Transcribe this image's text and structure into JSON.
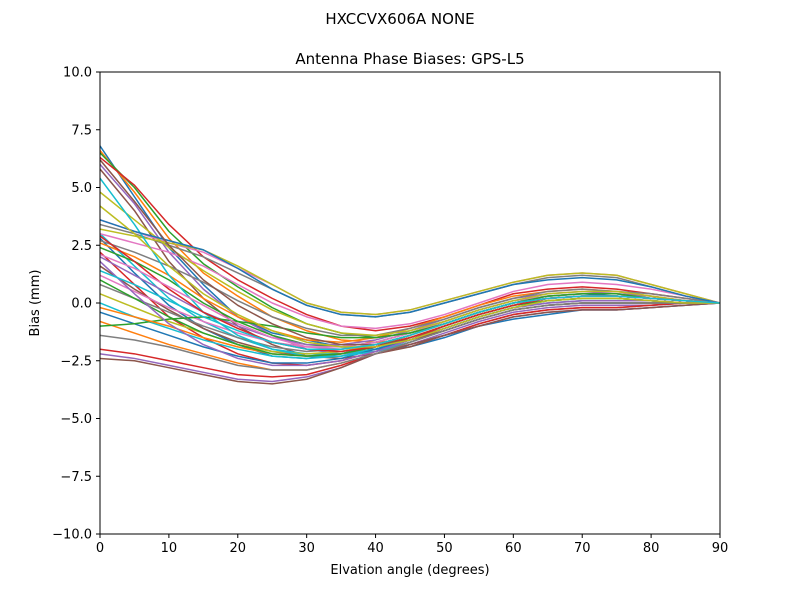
{
  "figure": {
    "suptitle": "HXCCVX606A       NONE"
  },
  "chart_data": {
    "type": "line",
    "title": "Antenna Phase Biases: GPS-L5",
    "xlabel": "Elvation angle (degrees)",
    "ylabel": "Bias (mm)",
    "xlim": [
      0,
      90
    ],
    "ylim": [
      -10,
      10
    ],
    "xticks": [
      0,
      10,
      20,
      30,
      40,
      50,
      60,
      70,
      80,
      90
    ],
    "yticks": [
      -10.0,
      -7.5,
      -5.0,
      -2.5,
      0.0,
      2.5,
      5.0,
      7.5,
      10.0
    ],
    "ytick_labels": [
      "−10.0",
      "−7.5",
      "−5.0",
      "−2.5",
      "0.0",
      "2.5",
      "5.0",
      "7.5",
      "10.0"
    ],
    "grid": false,
    "x": [
      0,
      5,
      10,
      15,
      20,
      25,
      30,
      35,
      40,
      45,
      50,
      55,
      60,
      65,
      70,
      75,
      80,
      85,
      90
    ],
    "series": [
      {
        "color": "#1f77b4",
        "values": [
          6.8,
          4.6,
          2.4,
          0.8,
          -0.6,
          -1.3,
          -1.6,
          -1.9,
          -2.0,
          -1.9,
          -1.5,
          -1.0,
          -0.7,
          -0.5,
          -0.3,
          -0.3,
          -0.2,
          -0.1,
          0.0
        ]
      },
      {
        "color": "#ff7f0e",
        "values": [
          6.6,
          4.8,
          2.8,
          1.3,
          0.3,
          -0.6,
          -1.2,
          -1.6,
          -1.7,
          -1.6,
          -1.2,
          -0.7,
          -0.3,
          -0.1,
          0.0,
          0.0,
          0.0,
          0.0,
          0.0
        ]
      },
      {
        "color": "#2ca02c",
        "values": [
          6.5,
          5.0,
          3.1,
          1.7,
          0.7,
          -0.2,
          -0.9,
          -1.3,
          -1.5,
          -1.3,
          -0.9,
          -0.4,
          0.0,
          0.2,
          0.3,
          0.3,
          0.2,
          0.1,
          0.0
        ]
      },
      {
        "color": "#d62728",
        "values": [
          6.3,
          5.1,
          3.4,
          2.0,
          1.0,
          0.2,
          -0.5,
          -1.0,
          -1.2,
          -1.0,
          -0.6,
          -0.1,
          0.4,
          0.6,
          0.7,
          0.6,
          0.4,
          0.2,
          0.0
        ]
      },
      {
        "color": "#9467bd",
        "values": [
          6.0,
          4.3,
          2.2,
          0.6,
          -0.6,
          -1.4,
          -2.0,
          -2.2,
          -2.1,
          -1.8,
          -1.3,
          -0.8,
          -0.4,
          -0.2,
          -0.1,
          -0.1,
          -0.1,
          0.0,
          0.0
        ]
      },
      {
        "color": "#8c564b",
        "values": [
          5.8,
          4.0,
          1.8,
          0.2,
          -1.0,
          -1.8,
          -2.3,
          -2.4,
          -2.2,
          -1.9,
          -1.4,
          -0.9,
          -0.5,
          -0.3,
          -0.2,
          -0.2,
          -0.1,
          0.0,
          0.0
        ]
      },
      {
        "color": "#e377c2",
        "values": [
          3.6,
          3.1,
          2.6,
          2.2,
          1.5,
          0.8,
          0.0,
          -0.4,
          -0.5,
          -0.3,
          0.1,
          0.5,
          0.9,
          1.2,
          1.3,
          1.2,
          0.8,
          0.4,
          0.0
        ]
      },
      {
        "color": "#7f7f7f",
        "values": [
          3.4,
          3.0,
          2.5,
          2.0,
          1.3,
          0.6,
          -0.1,
          -0.5,
          -0.6,
          -0.4,
          0.0,
          0.4,
          0.8,
          1.1,
          1.2,
          1.1,
          0.7,
          0.3,
          0.0
        ]
      },
      {
        "color": "#bcbd22",
        "values": [
          3.2,
          2.9,
          2.6,
          2.3,
          1.6,
          0.8,
          0.0,
          -0.4,
          -0.5,
          -0.3,
          0.1,
          0.5,
          0.9,
          1.2,
          1.3,
          1.2,
          0.8,
          0.4,
          0.0
        ]
      },
      {
        "color": "#17becf",
        "values": [
          3.0,
          1.6,
          0.2,
          -0.8,
          -1.5,
          -2.0,
          -2.2,
          -2.2,
          -2.0,
          -1.6,
          -1.1,
          -0.6,
          -0.2,
          0.1,
          0.2,
          0.2,
          0.1,
          0.0,
          0.0
        ]
      },
      {
        "color": "#1f77b4",
        "values": [
          2.8,
          1.3,
          -0.1,
          -1.1,
          -1.8,
          -2.3,
          -2.4,
          -2.2,
          -1.8,
          -1.4,
          -0.9,
          -0.4,
          0.0,
          0.3,
          0.4,
          0.3,
          0.2,
          0.1,
          0.0
        ]
      },
      {
        "color": "#ff7f0e",
        "values": [
          2.6,
          2.0,
          1.2,
          0.2,
          -0.6,
          -1.2,
          -1.6,
          -1.7,
          -1.5,
          -1.1,
          -0.6,
          -0.1,
          0.3,
          0.5,
          0.6,
          0.5,
          0.3,
          0.1,
          0.0
        ]
      },
      {
        "color": "#2ca02c",
        "values": [
          2.4,
          1.8,
          1.0,
          0.0,
          -0.8,
          -1.4,
          -1.8,
          -1.9,
          -1.7,
          -1.3,
          -0.8,
          -0.3,
          0.1,
          0.3,
          0.4,
          0.4,
          0.2,
          0.1,
          0.0
        ]
      },
      {
        "color": "#d62728",
        "values": [
          2.2,
          0.8,
          -0.6,
          -1.5,
          -2.2,
          -2.6,
          -2.7,
          -2.5,
          -2.1,
          -1.6,
          -1.0,
          -0.5,
          -0.1,
          0.2,
          0.3,
          0.3,
          0.2,
          0.1,
          0.0
        ]
      },
      {
        "color": "#9467bd",
        "values": [
          2.0,
          1.2,
          0.4,
          -0.4,
          -1.0,
          -1.5,
          -1.8,
          -1.8,
          -1.6,
          -1.2,
          -0.7,
          -0.2,
          0.2,
          0.4,
          0.5,
          0.4,
          0.3,
          0.1,
          0.0
        ]
      },
      {
        "color": "#8c564b",
        "values": [
          1.6,
          0.6,
          -0.3,
          -1.1,
          -1.7,
          -2.1,
          -2.3,
          -2.2,
          -1.9,
          -1.4,
          -0.9,
          -0.4,
          0.0,
          0.2,
          0.3,
          0.3,
          0.2,
          0.1,
          0.0
        ]
      },
      {
        "color": "#e377c2",
        "values": [
          1.2,
          0.5,
          -0.2,
          -0.8,
          -1.3,
          -1.7,
          -1.9,
          -1.9,
          -1.7,
          -1.3,
          -0.8,
          -0.3,
          0.1,
          0.3,
          0.4,
          0.4,
          0.2,
          0.1,
          0.0
        ]
      },
      {
        "color": "#7f7f7f",
        "values": [
          0.8,
          0.2,
          -0.4,
          -1.0,
          -1.5,
          -1.9,
          -2.1,
          -2.0,
          -1.8,
          -1.4,
          -0.9,
          -0.4,
          0.0,
          0.2,
          0.3,
          0.3,
          0.2,
          0.1,
          0.0
        ]
      },
      {
        "color": "#bcbd22",
        "values": [
          0.4,
          -0.2,
          -0.8,
          -1.3,
          -1.8,
          -2.1,
          -2.2,
          -2.1,
          -1.8,
          -1.4,
          -0.9,
          -0.4,
          0.0,
          0.2,
          0.3,
          0.3,
          0.2,
          0.1,
          0.0
        ]
      },
      {
        "color": "#17becf",
        "values": [
          0.0,
          -0.6,
          -1.1,
          -1.6,
          -2.0,
          -2.3,
          -2.4,
          -2.3,
          -2.0,
          -1.5,
          -1.0,
          -0.5,
          -0.1,
          0.1,
          0.2,
          0.2,
          0.1,
          0.0,
          0.0
        ]
      },
      {
        "color": "#1f77b4",
        "values": [
          -0.4,
          -0.9,
          -1.4,
          -1.9,
          -2.3,
          -2.6,
          -2.6,
          -2.4,
          -2.0,
          -1.6,
          -1.1,
          -0.6,
          -0.2,
          0.0,
          0.1,
          0.1,
          0.1,
          0.0,
          0.0
        ]
      },
      {
        "color": "#ff7f0e",
        "values": [
          -0.8,
          -1.3,
          -1.8,
          -2.2,
          -2.6,
          -2.9,
          -2.9,
          -2.6,
          -2.2,
          -1.7,
          -1.2,
          -0.7,
          -0.3,
          -0.1,
          0.0,
          0.0,
          0.0,
          0.0,
          0.0
        ]
      },
      {
        "color": "#2ca02c",
        "values": [
          -1.0,
          -0.9,
          -0.7,
          -0.6,
          -0.8,
          -1.0,
          -1.3,
          -1.5,
          -1.5,
          -1.3,
          -0.9,
          -0.4,
          0.0,
          0.3,
          0.4,
          0.4,
          0.2,
          0.1,
          0.0
        ]
      },
      {
        "color": "#d62728",
        "values": [
          -2.0,
          -2.2,
          -2.5,
          -2.8,
          -3.1,
          -3.2,
          -3.1,
          -2.7,
          -2.2,
          -1.8,
          -1.4,
          -0.9,
          -0.5,
          -0.3,
          -0.2,
          -0.2,
          -0.1,
          0.0,
          0.0
        ]
      },
      {
        "color": "#9467bd",
        "values": [
          -2.2,
          -2.4,
          -2.7,
          -3.0,
          -3.3,
          -3.4,
          -3.2,
          -2.8,
          -2.2,
          -1.8,
          -1.4,
          -1.0,
          -0.6,
          -0.4,
          -0.3,
          -0.3,
          -0.2,
          -0.1,
          0.0
        ]
      },
      {
        "color": "#8c564b",
        "values": [
          -2.4,
          -2.5,
          -2.8,
          -3.1,
          -3.4,
          -3.5,
          -3.3,
          -2.8,
          -2.2,
          -1.8,
          -1.4,
          -1.0,
          -0.6,
          -0.4,
          -0.3,
          -0.3,
          -0.2,
          -0.1,
          0.0
        ]
      },
      {
        "color": "#e377c2",
        "values": [
          3.0,
          2.6,
          2.2,
          1.6,
          0.8,
          0.0,
          -0.6,
          -1.0,
          -1.1,
          -0.9,
          -0.5,
          0.0,
          0.5,
          0.8,
          0.9,
          0.8,
          0.6,
          0.3,
          0.0
        ]
      },
      {
        "color": "#7f7f7f",
        "values": [
          2.7,
          2.2,
          1.6,
          0.9,
          0.1,
          -0.6,
          -1.1,
          -1.4,
          -1.4,
          -1.1,
          -0.7,
          -0.2,
          0.2,
          0.5,
          0.6,
          0.5,
          0.4,
          0.2,
          0.0
        ]
      },
      {
        "color": "#bcbd22",
        "values": [
          4.8,
          3.6,
          2.4,
          1.4,
          0.5,
          -0.3,
          -0.9,
          -1.3,
          -1.4,
          -1.2,
          -0.8,
          -0.3,
          0.1,
          0.4,
          0.5,
          0.5,
          0.3,
          0.1,
          0.0
        ]
      },
      {
        "color": "#17becf",
        "values": [
          5.4,
          3.4,
          1.2,
          -0.4,
          -1.4,
          -2.0,
          -2.3,
          -2.3,
          -2.1,
          -1.7,
          -1.2,
          -0.7,
          -0.3,
          -0.1,
          0.0,
          0.0,
          0.0,
          0.0,
          0.0
        ]
      },
      {
        "color": "#1f77b4",
        "values": [
          3.6,
          3.1,
          2.7,
          2.3,
          1.5,
          0.6,
          -0.1,
          -0.5,
          -0.6,
          -0.4,
          0.0,
          0.4,
          0.8,
          1.0,
          1.1,
          1.0,
          0.7,
          0.3,
          0.0
        ]
      },
      {
        "color": "#ff7f0e",
        "values": [
          -0.2,
          -0.6,
          -1.0,
          -1.5,
          -1.9,
          -2.2,
          -2.3,
          -2.2,
          -1.9,
          -1.5,
          -1.0,
          -0.5,
          -0.1,
          0.1,
          0.2,
          0.2,
          0.1,
          0.0,
          0.0
        ]
      },
      {
        "color": "#2ca02c",
        "values": [
          1.0,
          0.2,
          -0.6,
          -1.3,
          -1.8,
          -2.2,
          -2.3,
          -2.2,
          -1.9,
          -1.5,
          -1.0,
          -0.5,
          -0.1,
          0.1,
          0.2,
          0.2,
          0.1,
          0.0,
          0.0
        ]
      },
      {
        "color": "#d62728",
        "values": [
          2.9,
          1.8,
          0.6,
          -0.4,
          -1.1,
          -1.7,
          -2.0,
          -2.1,
          -1.9,
          -1.5,
          -1.0,
          -0.5,
          -0.1,
          0.2,
          0.3,
          0.3,
          0.2,
          0.1,
          0.0
        ]
      },
      {
        "color": "#9467bd",
        "values": [
          1.8,
          0.4,
          -0.9,
          -1.8,
          -2.4,
          -2.7,
          -2.7,
          -2.5,
          -2.1,
          -1.6,
          -1.1,
          -0.6,
          -0.2,
          0.0,
          0.1,
          0.1,
          0.1,
          0.0,
          0.0
        ]
      },
      {
        "color": "#8c564b",
        "values": [
          6.2,
          4.4,
          2.5,
          1.0,
          -0.1,
          -0.9,
          -1.5,
          -1.8,
          -1.8,
          -1.6,
          -1.2,
          -0.7,
          -0.3,
          -0.1,
          0.0,
          0.0,
          0.0,
          0.0,
          0.0
        ]
      },
      {
        "color": "#e377c2",
        "values": [
          2.1,
          1.5,
          0.7,
          -0.1,
          -0.9,
          -1.5,
          -1.9,
          -2.0,
          -1.8,
          -1.4,
          -0.9,
          -0.4,
          0.0,
          0.2,
          0.3,
          0.3,
          0.2,
          0.1,
          0.0
        ]
      },
      {
        "color": "#7f7f7f",
        "values": [
          -1.4,
          -1.6,
          -1.9,
          -2.3,
          -2.7,
          -2.9,
          -2.9,
          -2.6,
          -2.2,
          -1.7,
          -1.2,
          -0.7,
          -0.3,
          -0.1,
          0.0,
          0.0,
          0.0,
          0.0,
          0.0
        ]
      },
      {
        "color": "#bcbd22",
        "values": [
          4.2,
          3.0,
          1.6,
          0.4,
          -0.5,
          -1.2,
          -1.7,
          -1.9,
          -1.9,
          -1.6,
          -1.1,
          -0.6,
          -0.2,
          0.1,
          0.2,
          0.2,
          0.1,
          0.0,
          0.0
        ]
      },
      {
        "color": "#17becf",
        "values": [
          1.4,
          0.8,
          0.1,
          -0.6,
          -1.2,
          -1.7,
          -2.0,
          -2.0,
          -1.8,
          -1.4,
          -0.9,
          -0.4,
          0.0,
          0.2,
          0.3,
          0.3,
          0.2,
          0.1,
          0.0
        ]
      }
    ]
  }
}
